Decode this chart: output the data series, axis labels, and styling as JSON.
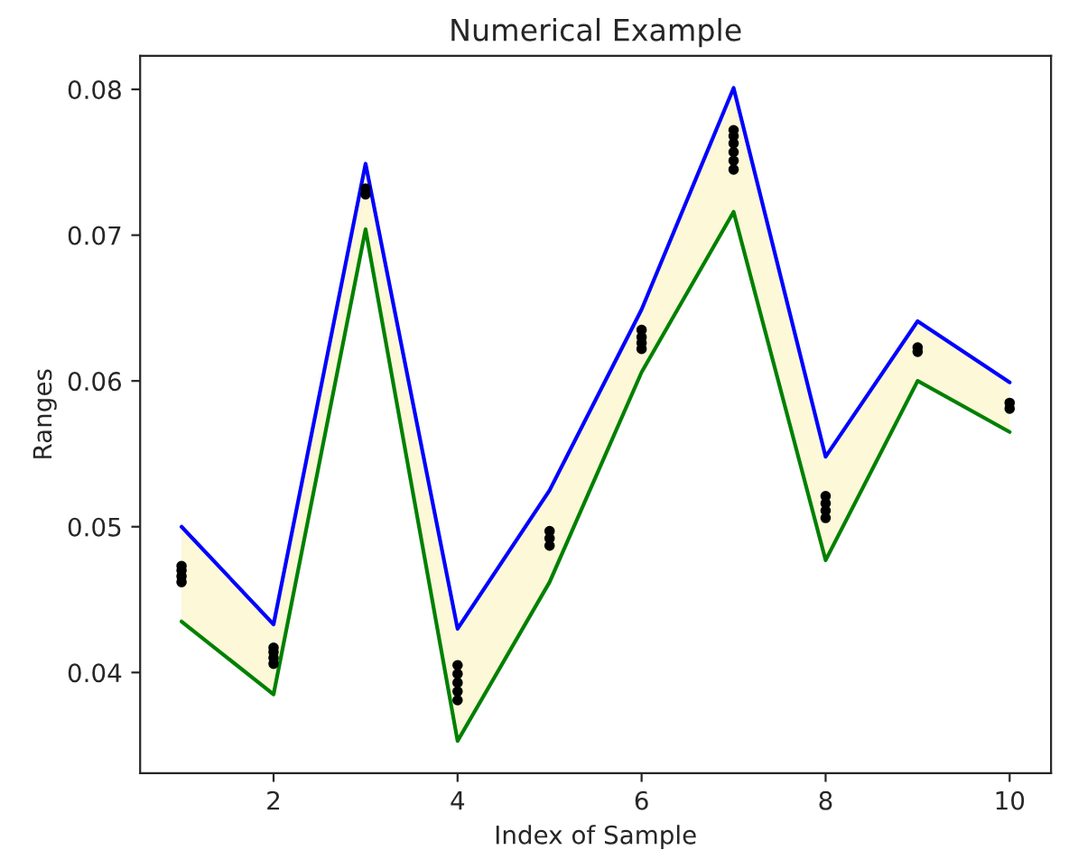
{
  "chart_data": {
    "type": "line",
    "title": "Numerical Example",
    "xlabel": "Index of Sample",
    "ylabel": "Ranges",
    "xlim": [
      0.55,
      10.45
    ],
    "xticks": [
      2,
      4,
      6,
      8,
      10
    ],
    "ylim": [
      0.0331,
      0.0823
    ],
    "yticks": [
      {
        "value": 0.04,
        "label": "0.04"
      },
      {
        "value": 0.05,
        "label": "0.05"
      },
      {
        "value": 0.06,
        "label": "0.06"
      },
      {
        "value": 0.07,
        "label": "0.07"
      },
      {
        "value": 0.08,
        "label": "0.08"
      }
    ],
    "grid": false,
    "legend": false,
    "series": [
      {
        "color": "#0000ff",
        "x": [
          1,
          2,
          3,
          4,
          5,
          6,
          7,
          8,
          9,
          10
        ],
        "values": [
          0.05,
          0.0433,
          0.0749,
          0.043,
          0.0525,
          0.0649,
          0.0801,
          0.0548,
          0.0641,
          0.0599
        ],
        "lower": [
          0.0435,
          0.0385,
          0.0704,
          0.0353,
          0.0462,
          0.0606,
          0.0716,
          0.0477,
          0.06,
          0.0565
        ],
        "upper": [
          0.05,
          0.0433,
          0.0749,
          0.043,
          0.0525,
          0.0649,
          0.0801,
          0.0548,
          0.0641,
          0.0599
        ]
      },
      {
        "color": "#008000",
        "x": [
          1,
          2,
          3,
          4,
          5,
          6,
          7,
          8,
          9,
          10
        ],
        "values": [
          0.0435,
          0.0385,
          0.0704,
          0.0353,
          0.0462,
          0.0606,
          0.0716,
          0.0477,
          0.06,
          0.0565
        ]
      },
      {
        "type": "scatter",
        "color": "#000000",
        "marker": "circle",
        "x": [
          1,
          1,
          1,
          1,
          2,
          2,
          2,
          2,
          3,
          3,
          4,
          4,
          4,
          4,
          4,
          5,
          5,
          5,
          6,
          6,
          6,
          6,
          7,
          7,
          7,
          7,
          7,
          7,
          8,
          8,
          8,
          8,
          9,
          9,
          10,
          10
        ],
        "values": [
          0.0462,
          0.0466,
          0.047,
          0.0473,
          0.0406,
          0.041,
          0.0414,
          0.0417,
          0.0728,
          0.0732,
          0.0381,
          0.0387,
          0.0393,
          0.0399,
          0.0405,
          0.0487,
          0.0492,
          0.0497,
          0.0622,
          0.0626,
          0.063,
          0.0635,
          0.0745,
          0.0751,
          0.0757,
          0.0763,
          0.0768,
          0.0772,
          0.0506,
          0.0511,
          0.0516,
          0.0521,
          0.062,
          0.0623,
          0.0581,
          0.0585
        ]
      }
    ]
  }
}
